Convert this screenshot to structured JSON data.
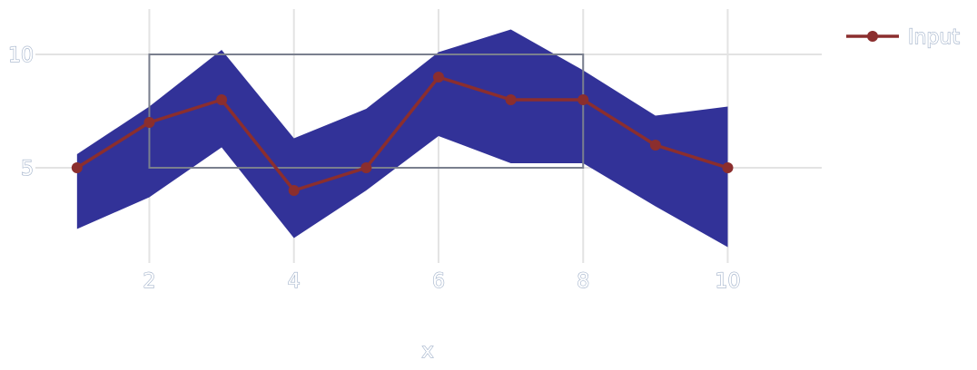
{
  "chart_data": {
    "type": "line",
    "title": "",
    "xlabel": "x",
    "ylabel": "",
    "xlim": [
      0.55,
      11.3
    ],
    "ylim": [
      0.8,
      12.0
    ],
    "x_ticks": [
      2,
      4,
      6,
      8,
      10
    ],
    "x_tick_labels": [
      "2",
      "4",
      "6",
      "8",
      "10"
    ],
    "y_ticks": [
      5,
      10
    ],
    "y_tick_labels": [
      "5",
      "10"
    ],
    "grid": true,
    "legend": {
      "placement": "top-right",
      "entries": [
        "Input"
      ]
    },
    "series": [
      {
        "name": "Input",
        "x": [
          1,
          2,
          3,
          4,
          5,
          6,
          7,
          8,
          9,
          10
        ],
        "values": [
          5,
          7,
          8,
          4,
          5,
          9,
          8,
          8,
          6,
          5
        ],
        "color": "#8b2e2e"
      }
    ],
    "band": {
      "x": [
        1,
        2,
        3,
        4,
        5,
        6,
        7,
        8,
        9,
        10
      ],
      "upper": [
        5.6,
        7.7,
        10.2,
        6.3,
        7.6,
        10.1,
        11.1,
        9.3,
        7.3,
        7.7
      ],
      "lower": [
        2.3,
        3.7,
        5.9,
        1.9,
        4.0,
        6.4,
        5.2,
        5.2,
        3.3,
        1.5
      ],
      "color": "#2e2e96"
    },
    "rectangles": [
      {
        "x0": 2,
        "x1": 8,
        "y0": 5,
        "y1": 10,
        "color": "#7a7f8e"
      }
    ],
    "colors": {
      "grid": "#e3e3e3",
      "line": "#8b2e2e",
      "band": "#2e2e96",
      "rect": "#7a7f8e"
    }
  }
}
